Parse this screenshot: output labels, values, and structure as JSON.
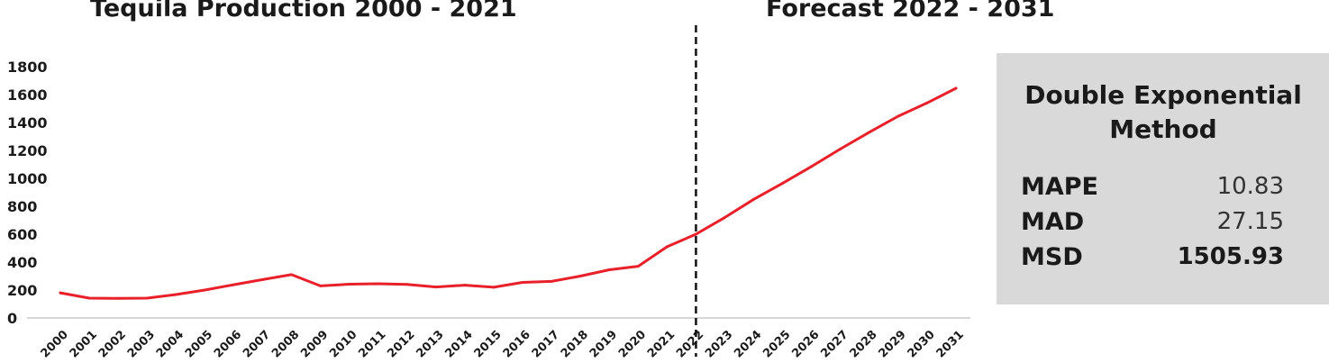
{
  "headers": {
    "left_title": "Tequila Production 2000 - 2021",
    "right_title": "Forecast 2022 - 2031"
  },
  "chart_data": {
    "type": "line",
    "x": [
      2000,
      2001,
      2002,
      2003,
      2004,
      2005,
      2006,
      2007,
      2008,
      2009,
      2010,
      2011,
      2012,
      2013,
      2014,
      2015,
      2016,
      2017,
      2018,
      2019,
      2020,
      2021,
      2022,
      2023,
      2024,
      2025,
      2026,
      2027,
      2028,
      2029,
      2030,
      2031
    ],
    "x_tick_labels": [
      "2000",
      "2001",
      "2002",
      "2003",
      "2004",
      "2005",
      "2006",
      "2007",
      "2008",
      "2009",
      "2010",
      "2011",
      "2012",
      "2013",
      "2014",
      "2015",
      "2016",
      "2017",
      "2018",
      "2019",
      "2020",
      "2021",
      "2022",
      "2023",
      "2024",
      "2025",
      "2026",
      "2027",
      "2028",
      "2029",
      "2030",
      "2031"
    ],
    "series": [
      {
        "color": "#e8202a",
        "values": [
          180,
          142,
          140,
          142,
          168,
          200,
          238,
          275,
          310,
          230,
          242,
          245,
          240,
          222,
          235,
          220,
          255,
          262,
          300,
          345,
          370,
          510,
          600,
          720,
          850,
          965,
          1085,
          1210,
          1330,
          1445,
          1540,
          1645
        ]
      }
    ],
    "y_ticks": [
      0,
      200,
      400,
      600,
      800,
      1000,
      1200,
      1400,
      1600,
      1800
    ],
    "ylim": [
      0,
      1800
    ],
    "divider_at": 2022,
    "divider_style": "dashed",
    "grid": false
  },
  "stats": {
    "title": "Double Exponential Method",
    "rows": [
      {
        "label": "MAPE",
        "value": "10.83",
        "bold": false
      },
      {
        "label": "MAD",
        "value": "27.15",
        "bold": false
      },
      {
        "label": "MSD",
        "value": "1505.93",
        "bold": true
      }
    ]
  }
}
